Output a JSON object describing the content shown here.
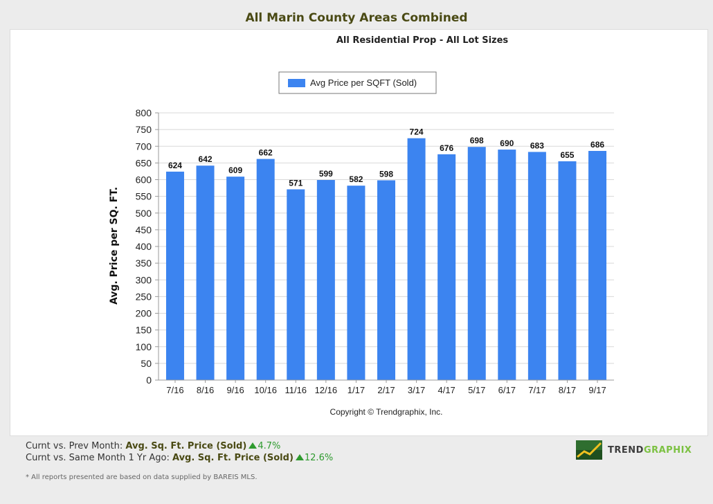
{
  "header": {
    "title": "All Marin County Areas Combined",
    "subtitle": "All Residential Prop - All Lot Sizes"
  },
  "chart_data": {
    "type": "bar",
    "categories": [
      "7/16",
      "8/16",
      "9/16",
      "10/16",
      "11/16",
      "12/16",
      "1/17",
      "2/17",
      "3/17",
      "4/17",
      "5/17",
      "6/17",
      "7/17",
      "8/17",
      "9/17"
    ],
    "series": [
      {
        "name": "Avg Price per SQFT (Sold)",
        "values": [
          624,
          642,
          609,
          662,
          571,
          599,
          582,
          598,
          724,
          676,
          698,
          690,
          683,
          655,
          686
        ],
        "color": "#3c84f0"
      }
    ],
    "ylabel": "Avg. Price per SQ. FT.",
    "xlabel": "",
    "ylim": [
      0,
      800
    ],
    "yticks": [
      0,
      50,
      100,
      150,
      200,
      250,
      300,
      350,
      400,
      450,
      500,
      550,
      600,
      650,
      700,
      750,
      800
    ],
    "grid": true,
    "legend_position": "top-center",
    "data_labels": true,
    "copyright": "Copyright © Trendgraphix, Inc."
  },
  "footer": {
    "line1_prefix": "Curnt vs. Prev Month: ",
    "line1_metric": "Avg. Sq. Ft. Price (Sold)",
    "line1_pct": "4.7%",
    "line2_prefix": "Curnt vs. Same Month 1 Yr Ago: ",
    "line2_metric": "Avg. Sq. Ft. Price (Sold)",
    "line2_pct": "12.6%",
    "trend_icon": "up-arrow-icon",
    "trend_color": "#2e9a2e",
    "note": "* All reports presented are based on data supplied by BAREIS MLS."
  },
  "logo": {
    "text_part1": "TREND",
    "text_part2": "GRAPHIX",
    "icon": "trend-chart-logo-icon"
  }
}
